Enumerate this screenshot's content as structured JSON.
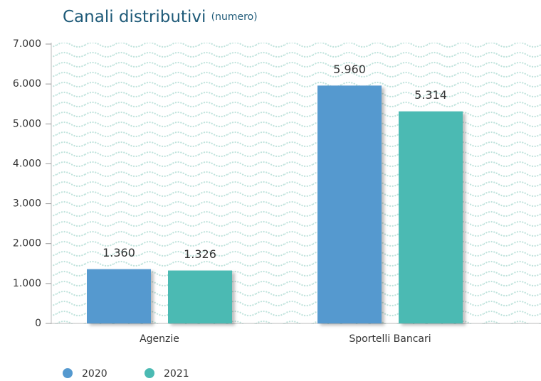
{
  "chart_data": {
    "type": "bar",
    "title": "Canali distributivi",
    "subtitle": "(numero)",
    "categories": [
      "Agenzie",
      "Sportelli Bancari"
    ],
    "series": [
      {
        "name": "2020",
        "color": "#5499cf",
        "values": [
          1360,
          5960
        ],
        "value_labels": [
          "1.360",
          "5.960"
        ]
      },
      {
        "name": "2021",
        "color": "#4bbab3",
        "values": [
          1326,
          5314
        ],
        "value_labels": [
          "1.326",
          "5.314"
        ]
      }
    ],
    "ylim": [
      0,
      7000
    ],
    "yticks": [
      0,
      {
        "value": 1000,
        "label": "1.000"
      },
      {
        "value": 2000,
        "label": "2.000"
      },
      {
        "value": 3000,
        "label": "3.000"
      },
      {
        "value": 4000,
        "label": "4.000"
      },
      {
        "value": 5000,
        "label": "5.000"
      },
      {
        "value": 6000,
        "label": "6.000"
      },
      {
        "value": 7000,
        "label": "7.000"
      }
    ],
    "legend": "bottom-left"
  }
}
